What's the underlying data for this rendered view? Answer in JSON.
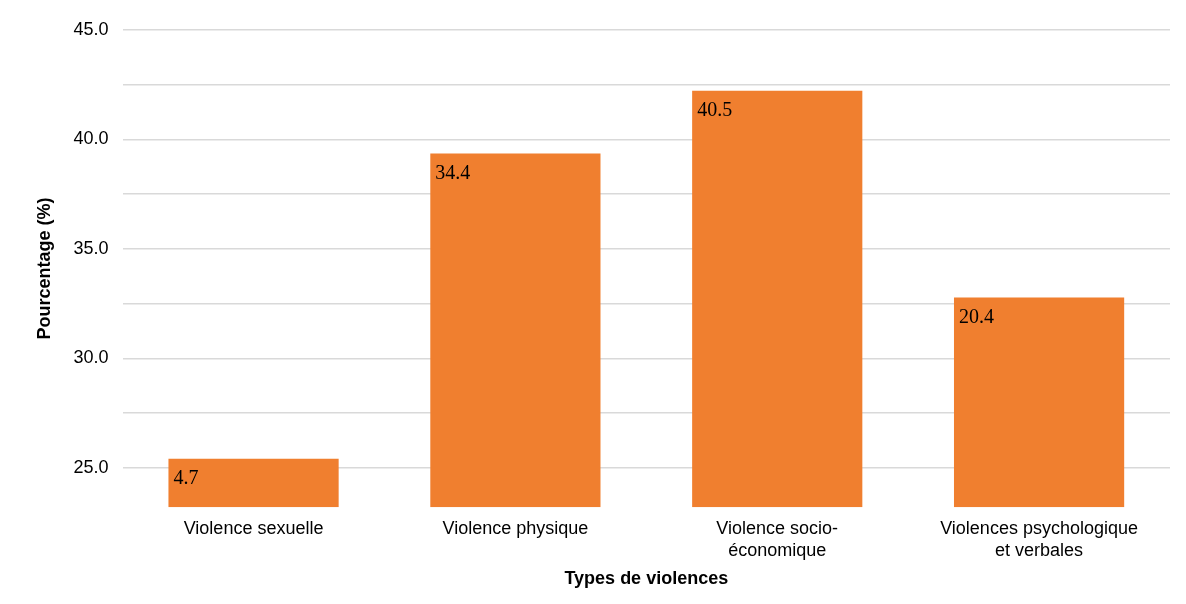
{
  "chart_data": {
    "type": "bar",
    "xlabel": "Types de violences",
    "ylabel": "Pourcentage (%)",
    "categories": [
      "Violence sexuelle",
      "Violence physique",
      "Violence socio-économique",
      "Violences psychologique et verbales"
    ],
    "series": [
      {
        "color": "#f07f2f",
        "axis": "y2",
        "values": [
          4.7,
          34.4,
          40.5,
          20.4
        ]
      }
    ],
    "ylim": [
      23.2,
      45
    ],
    "yticks": [
      {
        "value": 25,
        "label": "25.0"
      },
      {
        "value": 27.5,
        "label": null
      },
      {
        "value": 30,
        "label": "30.0"
      },
      {
        "value": 32.5,
        "label": null
      },
      {
        "value": 35,
        "label": "35.0"
      },
      {
        "value": 37.5,
        "label": null
      },
      {
        "value": 40,
        "label": "40.0"
      },
      {
        "value": 42.5,
        "label": null
      },
      {
        "value": 45,
        "label": "45.0"
      }
    ],
    "y2lim": [
      0,
      46.4
    ],
    "tick_labels": "xy",
    "grid": "y",
    "data_labels": true
  }
}
